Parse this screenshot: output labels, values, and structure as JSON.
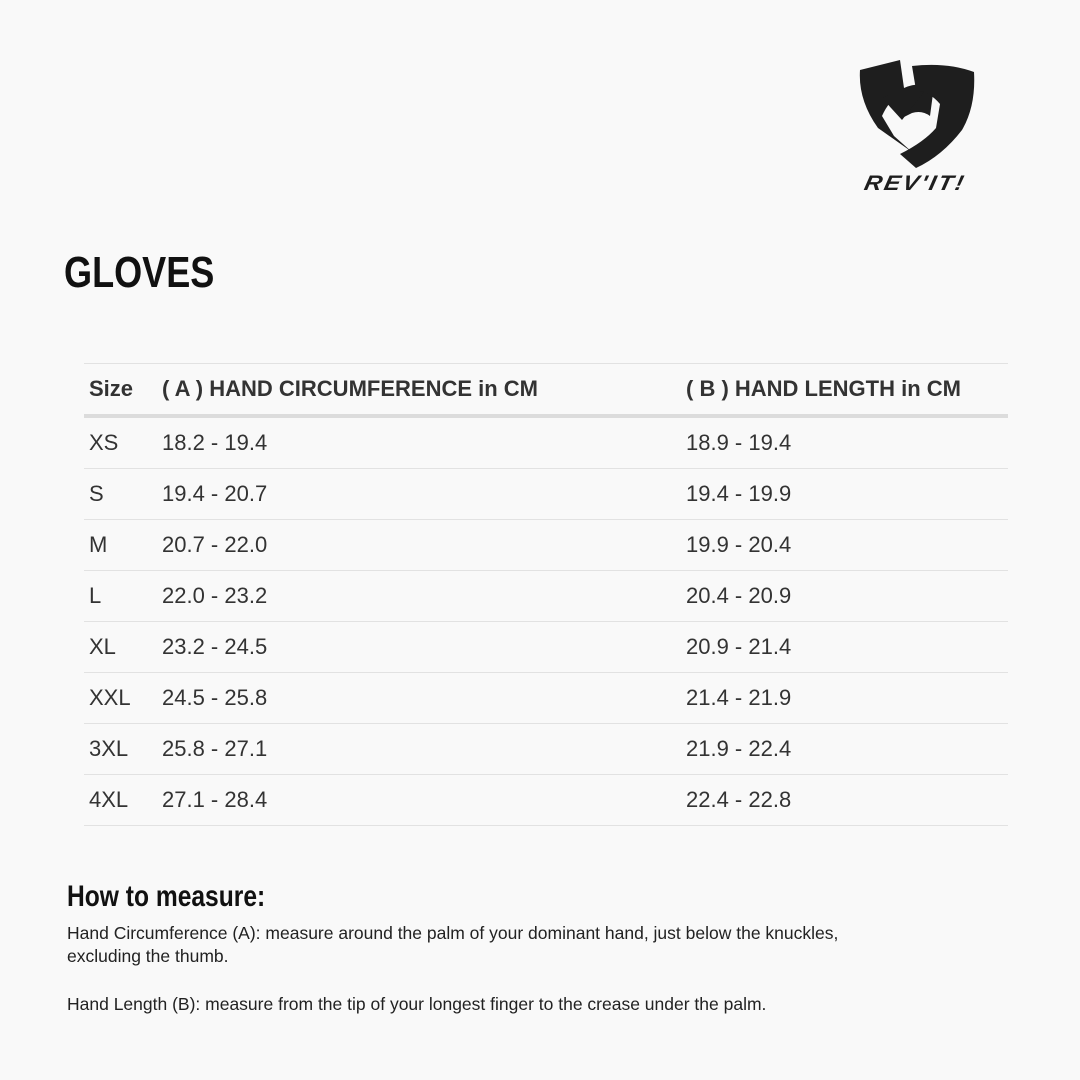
{
  "brand": {
    "logo_text": "REV'IT!",
    "logo_icon": "revit-shield-logo"
  },
  "title": "GLOVES",
  "table": {
    "headers": [
      "Size",
      "( A ) HAND CIRCUMFERENCE in CM",
      "( B ) HAND LENGTH in CM"
    ],
    "rows": [
      [
        "XS",
        "18.2 - 19.4",
        "18.9 - 19.4"
      ],
      [
        "S",
        "19.4 - 20.7",
        "19.4 - 19.9"
      ],
      [
        "M",
        "20.7 - 22.0",
        "19.9 - 20.4"
      ],
      [
        "L",
        "22.0 - 23.2",
        "20.4 - 20.9"
      ],
      [
        "XL",
        "23.2 - 24.5",
        "20.9 - 21.4"
      ],
      [
        "XXL",
        "24.5 - 25.8",
        "21.4 - 21.9"
      ],
      [
        "3XL",
        "25.8 - 27.1",
        "21.9 - 22.4"
      ],
      [
        "4XL",
        "27.1 - 28.4",
        "22.4 - 22.8"
      ]
    ]
  },
  "how_to": {
    "heading": "How to measure:",
    "circumference": "Hand Circumference (A): measure around the palm of your dominant hand, just below the knuckles, excluding the thumb.",
    "length": "Hand Length (B): measure from the tip of your longest finger to the crease under the palm."
  }
}
